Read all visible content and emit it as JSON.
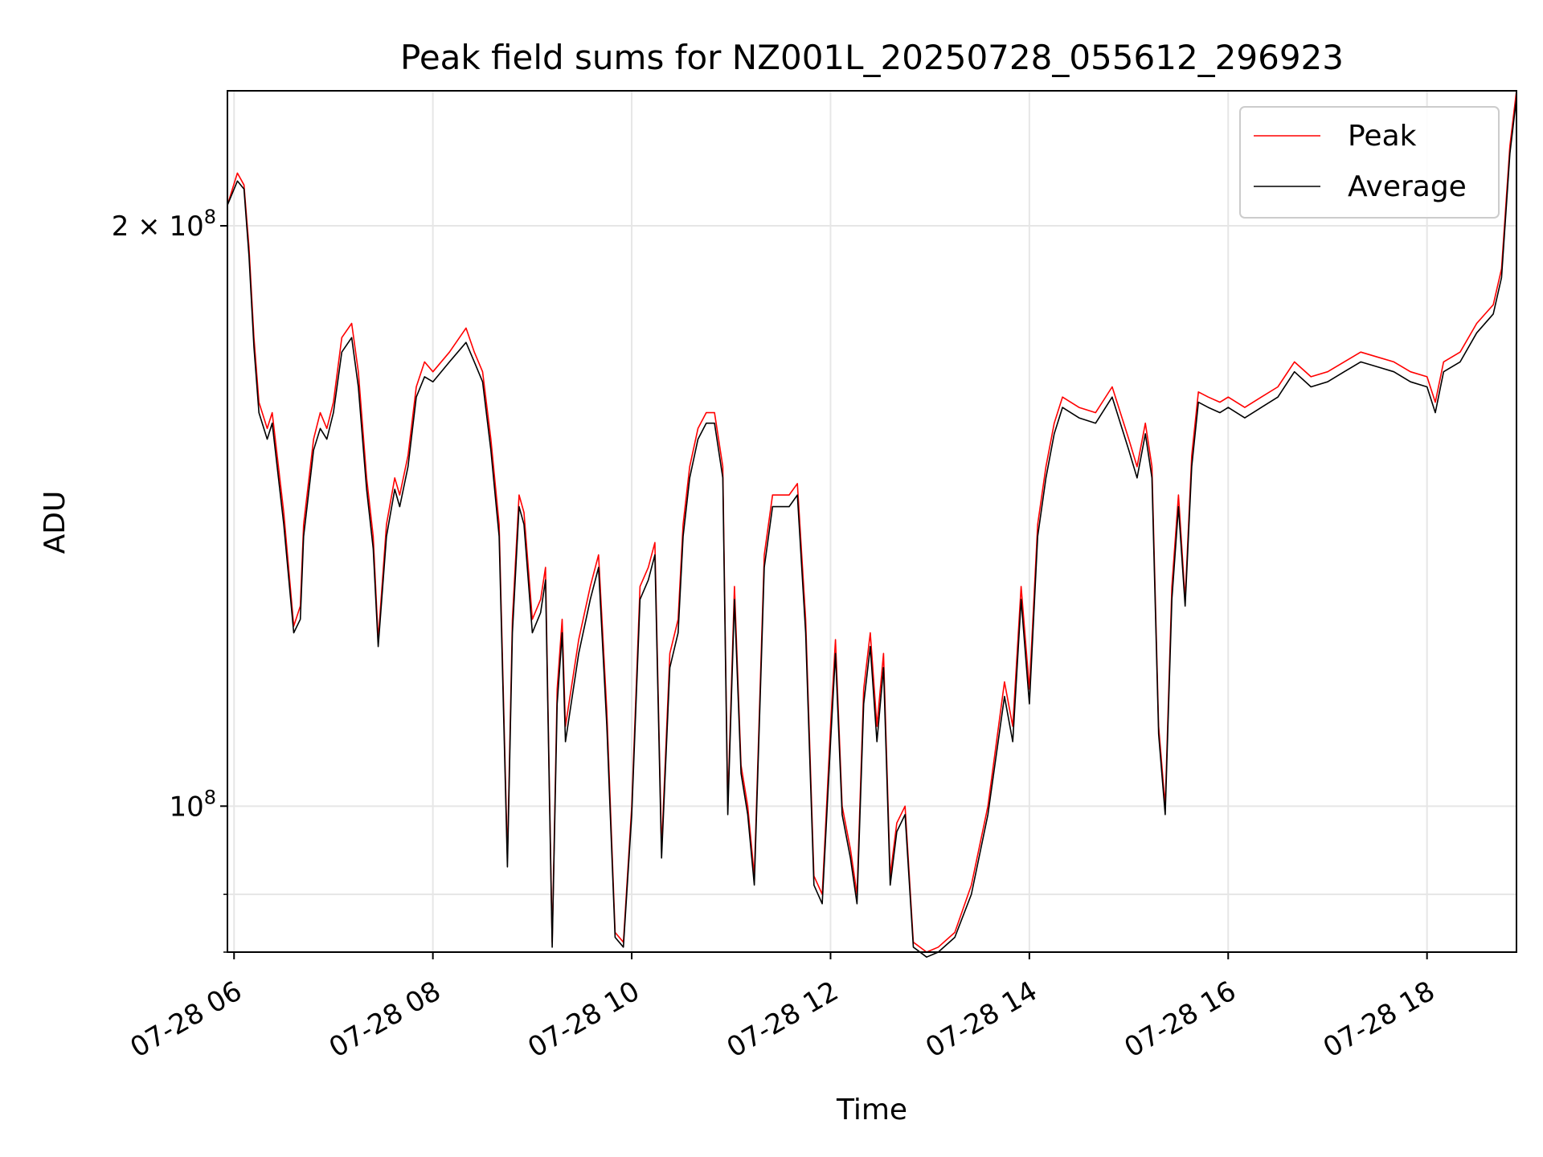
{
  "chart_data": {
    "type": "line",
    "title": "Peak field sums for NZ001L_20250728_055612_296923",
    "xlabel": "Time",
    "ylabel": "ADU",
    "yscale": "log",
    "grid": true,
    "legend_position": "top-right",
    "xlim": [
      "2025-07-28 05:56",
      "2025-07-28 18:54"
    ],
    "ylim": [
      84000000,
      235000000
    ],
    "x_ticks": [
      "07-28 06",
      "07-28 08",
      "07-28 10",
      "07-28 12",
      "07-28 14",
      "07-28 16",
      "07-28 18"
    ],
    "y_ticks": [
      {
        "value": 100000000,
        "base": "10",
        "exp": "8",
        "coef": ""
      },
      {
        "value": 200000000,
        "base": "10",
        "exp": "8",
        "coef": "2 × "
      }
    ],
    "y_minor_ticks": [
      84000000,
      90000000,
      300000000
    ],
    "series": [
      {
        "name": "Peak",
        "color": "#ff0000",
        "x": [
          "2025-07-28 05:56",
          "2025-07-28 06:02",
          "2025-07-28 06:06",
          "2025-07-28 06:09",
          "2025-07-28 06:12",
          "2025-07-28 06:15",
          "2025-07-28 06:20",
          "2025-07-28 06:23",
          "2025-07-28 06:30",
          "2025-07-28 06:36",
          "2025-07-28 06:40",
          "2025-07-28 06:42",
          "2025-07-28 06:48",
          "2025-07-28 06:52",
          "2025-07-28 06:56",
          "2025-07-28 07:00",
          "2025-07-28 07:05",
          "2025-07-28 07:11",
          "2025-07-28 07:15",
          "2025-07-28 07:20",
          "2025-07-28 07:24",
          "2025-07-28 07:27",
          "2025-07-28 07:32",
          "2025-07-28 07:37",
          "2025-07-28 07:40",
          "2025-07-28 07:45",
          "2025-07-28 07:50",
          "2025-07-28 07:55",
          "2025-07-28 08:00",
          "2025-07-28 08:10",
          "2025-07-28 08:20",
          "2025-07-28 08:25",
          "2025-07-28 08:30",
          "2025-07-28 08:35",
          "2025-07-28 08:40",
          "2025-07-28 08:45",
          "2025-07-28 08:48",
          "2025-07-28 08:52",
          "2025-07-28 08:55",
          "2025-07-28 09:00",
          "2025-07-28 09:05",
          "2025-07-28 09:08",
          "2025-07-28 09:12",
          "2025-07-28 09:15",
          "2025-07-28 09:18",
          "2025-07-28 09:20",
          "2025-07-28 09:28",
          "2025-07-28 09:35",
          "2025-07-28 09:40",
          "2025-07-28 09:45",
          "2025-07-28 09:50",
          "2025-07-28 09:55",
          "2025-07-28 10:00",
          "2025-07-28 10:05",
          "2025-07-28 10:10",
          "2025-07-28 10:14",
          "2025-07-28 10:18",
          "2025-07-28 10:23",
          "2025-07-28 10:28",
          "2025-07-28 10:31",
          "2025-07-28 10:35",
          "2025-07-28 10:40",
          "2025-07-28 10:45",
          "2025-07-28 10:50",
          "2025-07-28 10:55",
          "2025-07-28 10:58",
          "2025-07-28 11:02",
          "2025-07-28 11:06",
          "2025-07-28 11:10",
          "2025-07-28 11:14",
          "2025-07-28 11:20",
          "2025-07-28 11:25",
          "2025-07-28 11:30",
          "2025-07-28 11:35",
          "2025-07-28 11:40",
          "2025-07-28 11:45",
          "2025-07-28 11:50",
          "2025-07-28 11:55",
          "2025-07-28 12:00",
          "2025-07-28 12:03",
          "2025-07-28 12:07",
          "2025-07-28 12:12",
          "2025-07-28 12:16",
          "2025-07-28 12:20",
          "2025-07-28 12:24",
          "2025-07-28 12:28",
          "2025-07-28 12:32",
          "2025-07-28 12:36",
          "2025-07-28 12:40",
          "2025-07-28 12:45",
          "2025-07-28 12:50",
          "2025-07-28 12:58",
          "2025-07-28 13:05",
          "2025-07-28 13:15",
          "2025-07-28 13:25",
          "2025-07-28 13:35",
          "2025-07-28 13:45",
          "2025-07-28 13:50",
          "2025-07-28 13:55",
          "2025-07-28 14:00",
          "2025-07-28 14:05",
          "2025-07-28 14:10",
          "2025-07-28 14:15",
          "2025-07-28 14:20",
          "2025-07-28 14:30",
          "2025-07-28 14:40",
          "2025-07-28 14:50",
          "2025-07-28 15:00",
          "2025-07-28 15:05",
          "2025-07-28 15:10",
          "2025-07-28 15:14",
          "2025-07-28 15:18",
          "2025-07-28 15:22",
          "2025-07-28 15:26",
          "2025-07-28 15:30",
          "2025-07-28 15:34",
          "2025-07-28 15:38",
          "2025-07-28 15:42",
          "2025-07-28 15:48",
          "2025-07-28 15:55",
          "2025-07-28 16:00",
          "2025-07-28 16:10",
          "2025-07-28 16:20",
          "2025-07-28 16:30",
          "2025-07-28 16:40",
          "2025-07-28 16:50",
          "2025-07-28 17:00",
          "2025-07-28 17:10",
          "2025-07-28 17:20",
          "2025-07-28 17:30",
          "2025-07-28 17:40",
          "2025-07-28 17:50",
          "2025-07-28 18:00",
          "2025-07-28 18:05",
          "2025-07-28 18:10",
          "2025-07-28 18:20",
          "2025-07-28 18:30",
          "2025-07-28 18:40",
          "2025-07-28 18:45",
          "2025-07-28 18:50",
          "2025-07-28 18:54"
        ],
        "values": [
          205000000,
          213000000,
          210000000,
          195000000,
          175000000,
          162000000,
          157000000,
          160000000,
          142000000,
          124000000,
          127000000,
          140000000,
          155000000,
          160000000,
          157000000,
          162000000,
          175000000,
          178000000,
          168000000,
          148000000,
          138000000,
          122000000,
          140000000,
          148000000,
          145000000,
          152000000,
          165000000,
          170000000,
          168000000,
          172000000,
          177000000,
          172000000,
          168000000,
          155000000,
          140000000,
          94000000,
          125000000,
          145000000,
          142000000,
          125000000,
          128000000,
          133000000,
          85000000,
          115000000,
          125000000,
          110000000,
          122000000,
          130000000,
          135000000,
          112000000,
          86000000,
          85000000,
          100000000,
          130000000,
          133000000,
          137000000,
          95000000,
          120000000,
          125000000,
          140000000,
          150000000,
          157000000,
          160000000,
          160000000,
          150000000,
          100000000,
          130000000,
          105000000,
          100000000,
          92000000,
          135000000,
          145000000,
          145000000,
          145000000,
          147000000,
          125000000,
          92000000,
          90000000,
          110000000,
          122000000,
          100000000,
          95000000,
          90000000,
          115000000,
          123000000,
          110000000,
          120000000,
          92000000,
          98000000,
          100000000,
          85000000,
          84000000,
          84500000,
          86000000,
          91000000,
          100000000,
          116000000,
          110000000,
          130000000,
          115000000,
          140000000,
          150000000,
          158000000,
          163000000,
          161000000,
          160000000,
          165000000,
          155000000,
          150000000,
          158000000,
          150000000,
          110000000,
          100000000,
          130000000,
          145000000,
          128000000,
          152000000,
          164000000,
          163000000,
          162000000,
          163000000,
          161000000,
          163000000,
          165000000,
          170000000,
          167000000,
          168000000,
          170000000,
          172000000,
          171000000,
          170000000,
          168000000,
          167000000,
          162000000,
          170000000,
          172000000,
          178000000,
          182000000,
          190000000,
          220000000,
          235000000
        ]
      },
      {
        "name": "Average",
        "color": "#000000",
        "x": [
          "2025-07-28 05:56",
          "2025-07-28 06:02",
          "2025-07-28 06:06",
          "2025-07-28 06:09",
          "2025-07-28 06:12",
          "2025-07-28 06:15",
          "2025-07-28 06:20",
          "2025-07-28 06:23",
          "2025-07-28 06:30",
          "2025-07-28 06:36",
          "2025-07-28 06:40",
          "2025-07-28 06:42",
          "2025-07-28 06:48",
          "2025-07-28 06:52",
          "2025-07-28 06:56",
          "2025-07-28 07:00",
          "2025-07-28 07:05",
          "2025-07-28 07:11",
          "2025-07-28 07:15",
          "2025-07-28 07:20",
          "2025-07-28 07:24",
          "2025-07-28 07:27",
          "2025-07-28 07:32",
          "2025-07-28 07:37",
          "2025-07-28 07:40",
          "2025-07-28 07:45",
          "2025-07-28 07:50",
          "2025-07-28 07:55",
          "2025-07-28 08:00",
          "2025-07-28 08:10",
          "2025-07-28 08:20",
          "2025-07-28 08:25",
          "2025-07-28 08:30",
          "2025-07-28 08:35",
          "2025-07-28 08:40",
          "2025-07-28 08:45",
          "2025-07-28 08:48",
          "2025-07-28 08:52",
          "2025-07-28 08:55",
          "2025-07-28 09:00",
          "2025-07-28 09:05",
          "2025-07-28 09:08",
          "2025-07-28 09:12",
          "2025-07-28 09:15",
          "2025-07-28 09:18",
          "2025-07-28 09:20",
          "2025-07-28 09:28",
          "2025-07-28 09:35",
          "2025-07-28 09:40",
          "2025-07-28 09:45",
          "2025-07-28 09:50",
          "2025-07-28 09:55",
          "2025-07-28 10:00",
          "2025-07-28 10:05",
          "2025-07-28 10:10",
          "2025-07-28 10:14",
          "2025-07-28 10:18",
          "2025-07-28 10:23",
          "2025-07-28 10:28",
          "2025-07-28 10:31",
          "2025-07-28 10:35",
          "2025-07-28 10:40",
          "2025-07-28 10:45",
          "2025-07-28 10:50",
          "2025-07-28 10:55",
          "2025-07-28 10:58",
          "2025-07-28 11:02",
          "2025-07-28 11:06",
          "2025-07-28 11:10",
          "2025-07-28 11:14",
          "2025-07-28 11:20",
          "2025-07-28 11:25",
          "2025-07-28 11:30",
          "2025-07-28 11:35",
          "2025-07-28 11:40",
          "2025-07-28 11:45",
          "2025-07-28 11:50",
          "2025-07-28 11:55",
          "2025-07-28 12:00",
          "2025-07-28 12:03",
          "2025-07-28 12:07",
          "2025-07-28 12:12",
          "2025-07-28 12:16",
          "2025-07-28 12:20",
          "2025-07-28 12:24",
          "2025-07-28 12:28",
          "2025-07-28 12:32",
          "2025-07-28 12:36",
          "2025-07-28 12:40",
          "2025-07-28 12:45",
          "2025-07-28 12:50",
          "2025-07-28 12:58",
          "2025-07-28 13:05",
          "2025-07-28 13:15",
          "2025-07-28 13:25",
          "2025-07-28 13:35",
          "2025-07-28 13:45",
          "2025-07-28 13:50",
          "2025-07-28 13:55",
          "2025-07-28 14:00",
          "2025-07-28 14:05",
          "2025-07-28 14:10",
          "2025-07-28 14:15",
          "2025-07-28 14:20",
          "2025-07-28 14:30",
          "2025-07-28 14:40",
          "2025-07-28 14:50",
          "2025-07-28 15:00",
          "2025-07-28 15:05",
          "2025-07-28 15:10",
          "2025-07-28 15:14",
          "2025-07-28 15:18",
          "2025-07-28 15:22",
          "2025-07-28 15:26",
          "2025-07-28 15:30",
          "2025-07-28 15:34",
          "2025-07-28 15:38",
          "2025-07-28 15:42",
          "2025-07-28 15:48",
          "2025-07-28 15:55",
          "2025-07-28 16:00",
          "2025-07-28 16:10",
          "2025-07-28 16:20",
          "2025-07-28 16:30",
          "2025-07-28 16:40",
          "2025-07-28 16:50",
          "2025-07-28 17:00",
          "2025-07-28 17:10",
          "2025-07-28 17:20",
          "2025-07-28 17:30",
          "2025-07-28 17:40",
          "2025-07-28 17:50",
          "2025-07-28 18:00",
          "2025-07-28 18:05",
          "2025-07-28 18:10",
          "2025-07-28 18:20",
          "2025-07-28 18:30",
          "2025-07-28 18:40",
          "2025-07-28 18:45",
          "2025-07-28 18:50",
          "2025-07-28 18:54"
        ],
        "values": [
          205000000,
          211000000,
          209000000,
          193000000,
          173000000,
          160000000,
          155000000,
          158000000,
          140000000,
          123000000,
          125000000,
          138000000,
          153000000,
          157000000,
          155000000,
          160000000,
          172000000,
          175000000,
          165000000,
          146000000,
          136000000,
          121000000,
          138000000,
          146000000,
          143000000,
          150000000,
          163000000,
          167000000,
          166000000,
          170000000,
          174000000,
          170000000,
          166000000,
          153000000,
          138000000,
          93000000,
          123000000,
          143000000,
          140000000,
          123000000,
          126000000,
          131000000,
          84500000,
          113000000,
          123000000,
          108000000,
          120000000,
          128000000,
          133000000,
          110000000,
          85500000,
          84500000,
          99000000,
          128000000,
          131000000,
          135000000,
          94000000,
          118000000,
          123000000,
          138000000,
          148000000,
          155000000,
          158000000,
          158000000,
          148000000,
          99000000,
          128000000,
          104000000,
          99000000,
          91000000,
          133000000,
          143000000,
          143000000,
          143000000,
          145000000,
          123000000,
          91000000,
          89000000,
          108000000,
          120000000,
          99000000,
          94000000,
          89000000,
          113000000,
          121000000,
          108000000,
          118000000,
          91000000,
          97000000,
          99000000,
          84500000,
          83500000,
          84000000,
          85500000,
          90000000,
          99000000,
          114000000,
          108000000,
          128000000,
          113000000,
          138000000,
          148000000,
          156000000,
          161000000,
          159000000,
          158000000,
          163000000,
          153000000,
          148000000,
          156000000,
          148000000,
          109000000,
          99000000,
          128000000,
          143000000,
          127000000,
          150000000,
          162000000,
          161000000,
          160000000,
          161000000,
          159000000,
          161000000,
          163000000,
          168000000,
          165000000,
          166000000,
          168000000,
          170000000,
          169000000,
          168000000,
          166000000,
          165000000,
          160000000,
          168000000,
          170000000,
          176000000,
          180000000,
          188000000,
          218000000,
          233000000
        ]
      }
    ]
  }
}
